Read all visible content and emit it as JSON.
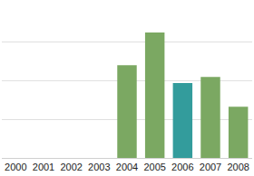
{
  "chart_data": {
    "type": "bar",
    "categories": [
      "2000",
      "2001",
      "2002",
      "2003",
      "2004",
      "2005",
      "2006",
      "2007",
      "2008"
    ],
    "values": [
      null,
      null,
      null,
      null,
      2.39,
      3.23,
      1.93,
      2.09,
      1.32
    ],
    "colors": [
      "#7ba862",
      "#7ba862",
      "#7ba862",
      "#7ba862",
      "#7ba862",
      "#7ba862",
      "#339c9c",
      "#7ba862",
      "#7ba862"
    ],
    "ylim": [
      0,
      4
    ],
    "yticks": [
      0,
      1,
      2,
      3,
      4
    ],
    "grid": true,
    "tick_labels": "x"
  }
}
